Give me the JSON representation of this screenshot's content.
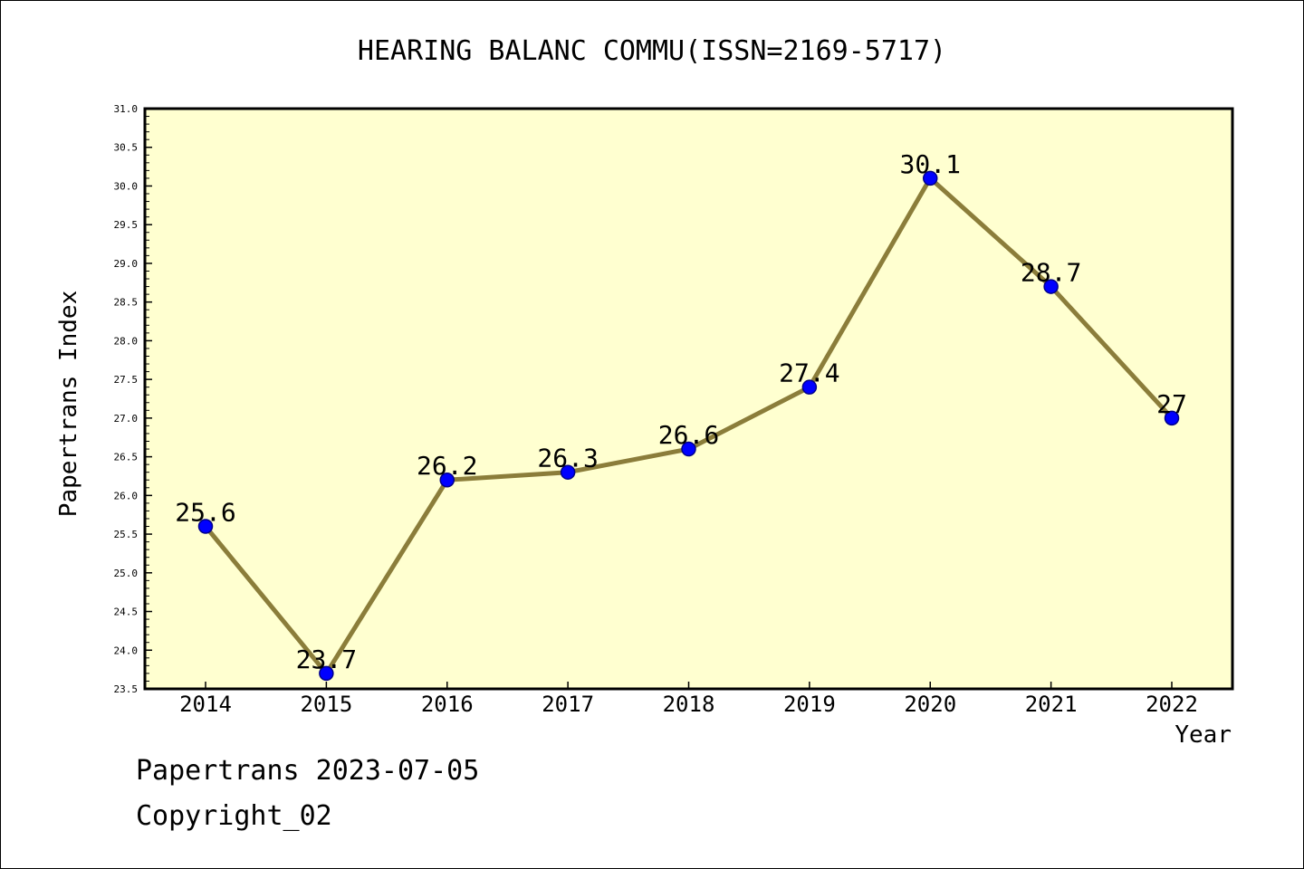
{
  "chart_data": {
    "type": "line",
    "title": "HEARING BALANC COMMU(ISSN=2169-5717)",
    "xlabel": "Year",
    "ylabel": "Papertrans Index",
    "categories": [
      "2014",
      "2015",
      "2016",
      "2017",
      "2018",
      "2019",
      "2020",
      "2021",
      "2022"
    ],
    "values": [
      25.6,
      23.7,
      26.2,
      26.3,
      26.6,
      27.4,
      30.1,
      28.7,
      27
    ],
    "data_labels": [
      "25.6",
      "23.7",
      "26.2",
      "26.3",
      "26.6",
      "27.4",
      "30.1",
      "28.7",
      "27"
    ],
    "ylim": [
      23.5,
      31.0
    ],
    "ytick_labels": [
      "23.5",
      "24.0",
      "24.5",
      "25.0",
      "25.5",
      "26.0",
      "26.5",
      "27.0",
      "27.5",
      "28.0",
      "28.5",
      "29.0",
      "29.5",
      "30.0",
      "30.5",
      "31.0"
    ],
    "grid": false,
    "legend": "none",
    "colors": {
      "plot_background": "#ffffd0",
      "line": "#8b7d3a",
      "marker": "#0000ff",
      "marker_edge": "#00008b",
      "axis": "#000000"
    }
  },
  "footer": {
    "date_text": "Papertrans 2023-07-05",
    "copyright_text": "Copyright_02"
  }
}
